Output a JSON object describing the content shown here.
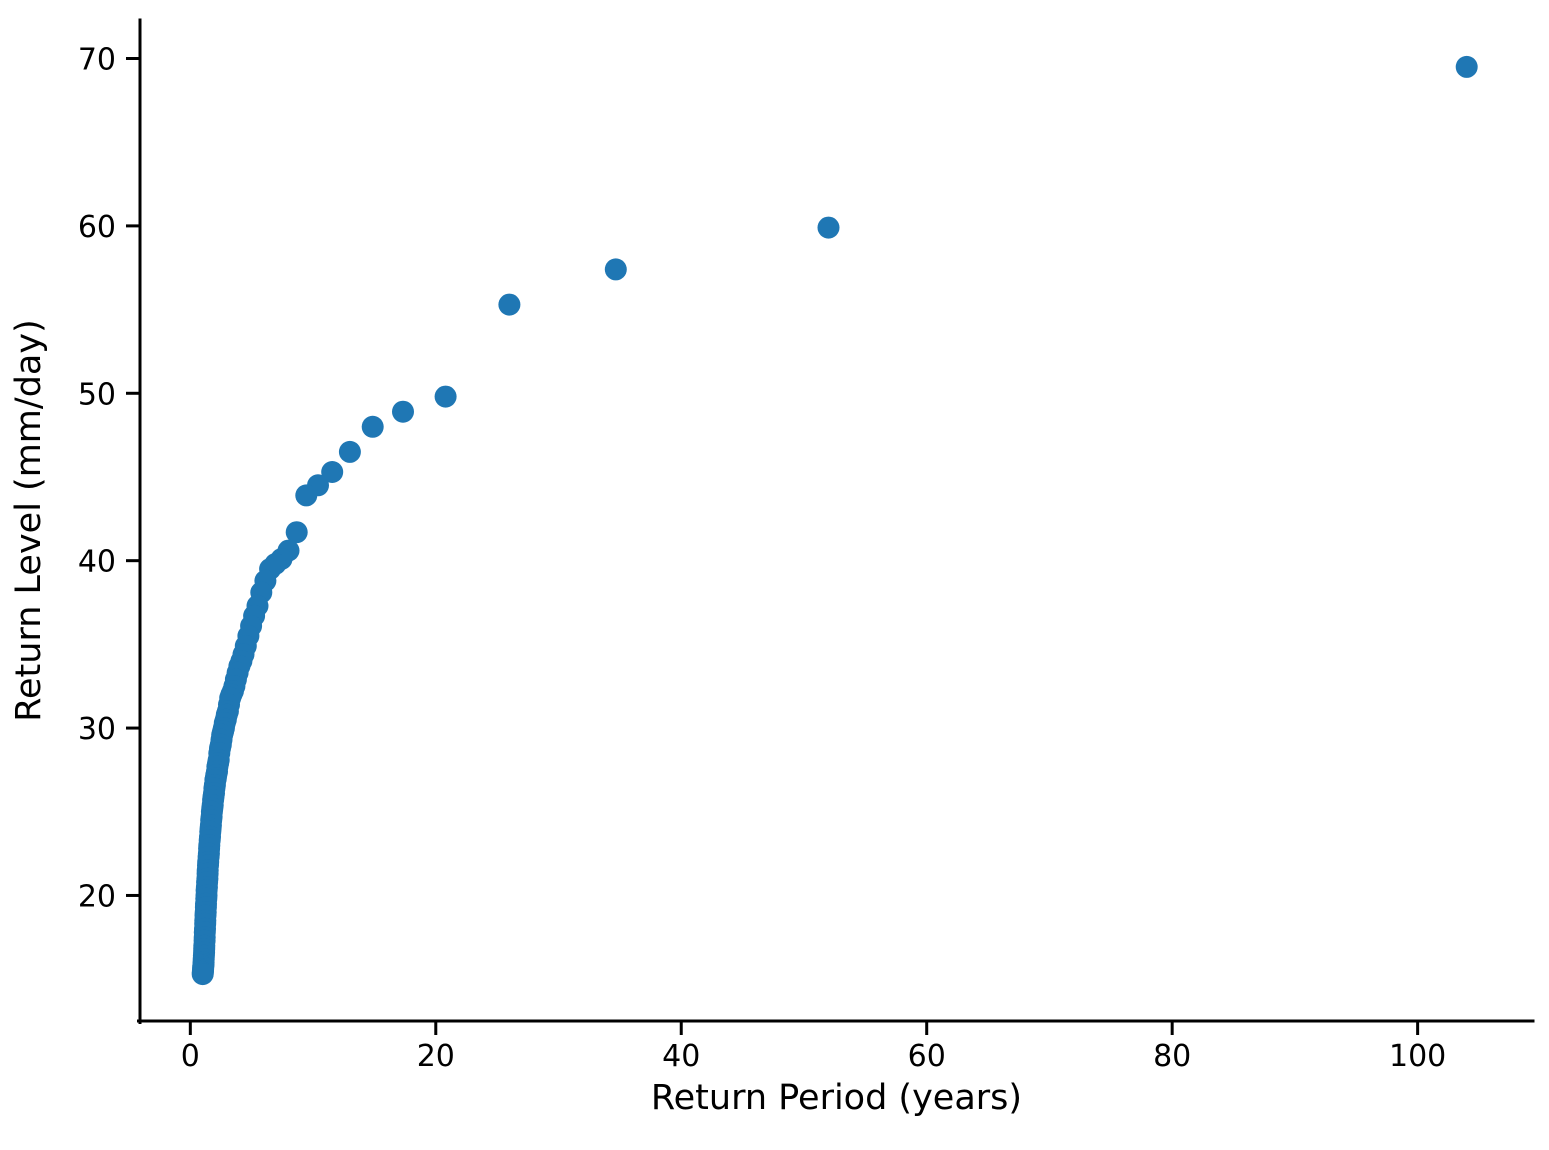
{
  "figure": {
    "background_color": "#ffffff",
    "title": ""
  },
  "chart_data": {
    "type": "scatter",
    "title": "",
    "xlabel": "Return Period (years)",
    "ylabel": "Return Level (mm/day)",
    "x_ticks": [
      0,
      20,
      40,
      60,
      80,
      100
    ],
    "y_ticks": [
      20,
      30,
      40,
      50,
      60,
      70
    ],
    "xlim": [
      -4.1,
      109.4
    ],
    "ylim": [
      12.5,
      72.3
    ],
    "grid": false,
    "legend": false,
    "spines": "left-bottom-only",
    "marker_color": "#1f77b4",
    "marker_radius_px": 11,
    "points": [
      [
        104.0,
        69.5
      ],
      [
        52.0,
        59.9
      ],
      [
        34.67,
        57.4
      ],
      [
        26.0,
        55.3
      ],
      [
        20.8,
        49.8
      ],
      [
        17.33,
        48.9
      ],
      [
        14.86,
        48.0
      ],
      [
        13.0,
        46.5
      ],
      [
        11.56,
        45.3
      ],
      [
        10.4,
        44.5
      ],
      [
        9.45,
        43.9
      ],
      [
        8.67,
        41.7
      ],
      [
        8.0,
        40.6
      ],
      [
        7.43,
        40.1
      ],
      [
        6.93,
        39.8
      ],
      [
        6.5,
        39.5
      ],
      [
        6.12,
        38.8
      ],
      [
        5.78,
        38.1
      ],
      [
        5.47,
        37.3
      ],
      [
        5.2,
        36.7
      ],
      [
        4.95,
        36.1
      ],
      [
        4.73,
        35.5
      ],
      [
        4.52,
        34.9
      ],
      [
        4.33,
        34.4
      ],
      [
        4.16,
        34.0
      ],
      [
        4.0,
        33.7
      ],
      [
        3.85,
        33.3
      ],
      [
        3.71,
        32.9
      ],
      [
        3.59,
        32.5
      ],
      [
        3.47,
        32.2
      ],
      [
        3.35,
        32.0
      ],
      [
        3.25,
        31.8
      ],
      [
        3.15,
        31.4
      ],
      [
        3.06,
        31.0
      ],
      [
        2.97,
        30.8
      ],
      [
        2.89,
        30.5
      ],
      [
        2.81,
        30.3
      ],
      [
        2.74,
        30.0
      ],
      [
        2.67,
        29.8
      ],
      [
        2.6,
        29.6
      ],
      [
        2.54,
        29.3
      ],
      [
        2.48,
        29.0
      ],
      [
        2.42,
        28.8
      ],
      [
        2.36,
        28.5
      ],
      [
        2.31,
        28.1
      ],
      [
        2.26,
        27.9
      ],
      [
        2.21,
        27.7
      ],
      [
        2.17,
        27.4
      ],
      [
        2.12,
        27.2
      ],
      [
        2.08,
        27.0
      ],
      [
        2.04,
        26.9
      ],
      [
        2.0,
        26.6
      ],
      [
        1.96,
        26.4
      ],
      [
        1.93,
        26.1
      ],
      [
        1.89,
        25.9
      ],
      [
        1.86,
        25.7
      ],
      [
        1.82,
        25.4
      ],
      [
        1.79,
        25.2
      ],
      [
        1.76,
        25.0
      ],
      [
        1.73,
        24.7
      ],
      [
        1.7,
        24.5
      ],
      [
        1.68,
        24.2
      ],
      [
        1.65,
        24.0
      ],
      [
        1.63,
        23.8
      ],
      [
        1.6,
        23.5
      ],
      [
        1.58,
        23.3
      ],
      [
        1.55,
        23.0
      ],
      [
        1.53,
        22.8
      ],
      [
        1.51,
        22.5
      ],
      [
        1.49,
        22.3
      ],
      [
        1.46,
        22.0
      ],
      [
        1.44,
        21.8
      ],
      [
        1.42,
        21.5
      ],
      [
        1.41,
        21.3
      ],
      [
        1.39,
        21.0
      ],
      [
        1.37,
        20.8
      ],
      [
        1.35,
        20.5
      ],
      [
        1.33,
        20.3
      ],
      [
        1.32,
        20.0
      ],
      [
        1.3,
        19.8
      ],
      [
        1.28,
        19.5
      ],
      [
        1.27,
        19.3
      ],
      [
        1.25,
        19.0
      ],
      [
        1.24,
        18.8
      ],
      [
        1.22,
        18.5
      ],
      [
        1.21,
        18.3
      ],
      [
        1.2,
        18.0
      ],
      [
        1.18,
        17.8
      ],
      [
        1.17,
        17.5
      ],
      [
        1.16,
        17.3
      ],
      [
        1.14,
        17.0
      ],
      [
        1.13,
        16.8
      ],
      [
        1.12,
        16.6
      ],
      [
        1.11,
        16.4
      ],
      [
        1.09,
        16.2
      ],
      [
        1.08,
        16.0
      ],
      [
        1.07,
        15.9
      ],
      [
        1.06,
        15.8
      ],
      [
        1.05,
        15.7
      ],
      [
        1.04,
        15.6
      ],
      [
        1.03,
        15.5
      ],
      [
        1.02,
        15.4
      ],
      [
        1.01,
        15.3
      ]
    ]
  }
}
